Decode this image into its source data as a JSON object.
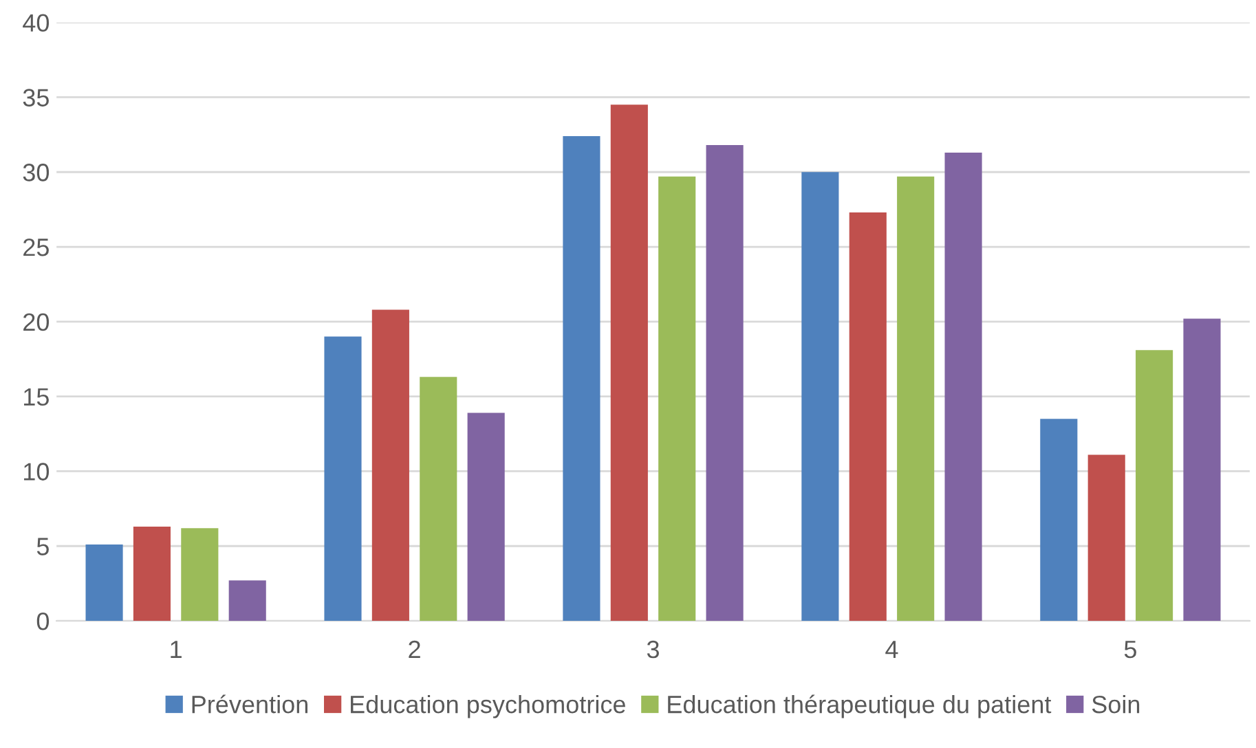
{
  "chart_data": {
    "type": "bar",
    "categories": [
      "1",
      "2",
      "3",
      "4",
      "5"
    ],
    "series": [
      {
        "name": "Prévention",
        "color": "#4f81bd",
        "values": [
          5.1,
          19.0,
          32.4,
          30.0,
          13.5
        ]
      },
      {
        "name": "Education psychomotrice",
        "color": "#c0504d",
        "values": [
          6.3,
          20.8,
          34.5,
          27.3,
          11.1
        ]
      },
      {
        "name": "Education thérapeutique du patient",
        "color": "#9bbb59",
        "values": [
          6.2,
          16.3,
          29.7,
          29.7,
          18.1
        ]
      },
      {
        "name": "Soin",
        "color": "#8064a2",
        "values": [
          2.7,
          13.9,
          31.8,
          31.3,
          20.2
        ]
      }
    ],
    "ylim": [
      0,
      40
    ],
    "yticks": [
      0,
      5,
      10,
      15,
      20,
      25,
      30,
      35,
      40
    ],
    "grid": "y",
    "legend": "bottom"
  }
}
